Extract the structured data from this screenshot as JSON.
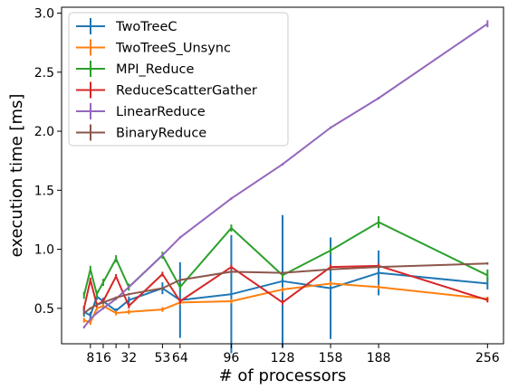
{
  "chart_data": {
    "type": "line",
    "title": "",
    "xlabel": "# of processors",
    "ylabel": "execution time [ms]",
    "x_ticks": [
      8,
      16,
      32,
      53,
      64,
      96,
      128,
      158,
      188,
      256
    ],
    "x_tick_labels": [
      "8",
      "16",
      "",
      "32",
      "53",
      "64",
      "96",
      "128",
      "158",
      "188",
      "256"
    ],
    "x_tick_positions": [
      8,
      16,
      24,
      32,
      53,
      64,
      96,
      128,
      158,
      188,
      256
    ],
    "y_ticks": [
      0.5,
      1.0,
      1.5,
      2.0,
      2.5,
      3.0
    ],
    "y_tick_labels": [
      "0.5",
      "1.0",
      "1.5",
      "2.0",
      "2.5",
      "3.0"
    ],
    "xlim": [
      -10,
      266
    ],
    "ylim": [
      0.2,
      3.05
    ],
    "grid": false,
    "legend_position": "top-left",
    "series": [
      {
        "name": "TwoTreeC",
        "color": "#1f77b4",
        "x": [
          4,
          8,
          12,
          16,
          24,
          32,
          53,
          64,
          96,
          128,
          158,
          188,
          256
        ],
        "y": [
          0.47,
          0.44,
          0.6,
          0.56,
          0.48,
          0.57,
          0.67,
          0.57,
          0.62,
          0.73,
          0.67,
          0.8,
          0.71
        ],
        "err": [
          0.04,
          0.03,
          0.03,
          0.03,
          0.02,
          0.03,
          0.05,
          0.32,
          0.5,
          0.56,
          0.43,
          0.19,
          0.05
        ]
      },
      {
        "name": "TwoTreeS_Unsync",
        "color": "#ff7f0e",
        "x": [
          4,
          8,
          12,
          16,
          24,
          32,
          53,
          64,
          96,
          128,
          158,
          188,
          256
        ],
        "y": [
          0.4,
          0.38,
          0.5,
          0.52,
          0.46,
          0.47,
          0.49,
          0.55,
          0.56,
          0.66,
          0.71,
          0.68,
          0.58
        ],
        "err": [
          0.02,
          0.02,
          0.02,
          0.02,
          0.02,
          0.02,
          0.02,
          0.02,
          0.02,
          0.02,
          0.02,
          0.02,
          0.02
        ]
      },
      {
        "name": "MPI_Reduce",
        "color": "#2ca02c",
        "x": [
          4,
          8,
          12,
          16,
          24,
          32,
          53,
          64,
          96,
          128,
          158,
          188,
          256
        ],
        "y": [
          0.61,
          0.83,
          0.62,
          0.72,
          0.92,
          0.68,
          0.95,
          0.68,
          1.18,
          0.78,
          0.99,
          1.23,
          0.78
        ],
        "err": [
          0.03,
          0.03,
          0.03,
          0.03,
          0.03,
          0.03,
          0.03,
          0.03,
          0.03,
          0.03,
          0.03,
          0.05,
          0.05
        ]
      },
      {
        "name": "ReduceScatterGather",
        "color": "#d62728",
        "x": [
          4,
          8,
          12,
          16,
          24,
          32,
          53,
          64,
          96,
          128,
          158,
          188,
          256
        ],
        "y": [
          0.5,
          0.74,
          0.53,
          0.56,
          0.77,
          0.52,
          0.79,
          0.56,
          0.85,
          0.55,
          0.85,
          0.86,
          0.57
        ],
        "err": [
          0.02,
          0.02,
          0.02,
          0.02,
          0.02,
          0.02,
          0.02,
          0.02,
          0.02,
          0.02,
          0.02,
          0.02,
          0.02
        ]
      },
      {
        "name": "LinearReduce",
        "color": "#9467bd",
        "x": [
          4,
          8,
          12,
          16,
          24,
          32,
          53,
          64,
          96,
          128,
          158,
          188,
          256
        ],
        "y": [
          0.34,
          0.41,
          0.46,
          0.5,
          0.58,
          0.68,
          0.95,
          1.1,
          1.43,
          1.72,
          2.03,
          2.28,
          2.91
        ],
        "err": [
          0.01,
          0.01,
          0.01,
          0.01,
          0.01,
          0.01,
          0.01,
          0.01,
          0.01,
          0.01,
          0.01,
          0.01,
          0.03
        ]
      },
      {
        "name": "BinaryReduce",
        "color": "#8c564b",
        "x": [
          4,
          8,
          12,
          16,
          24,
          32,
          53,
          64,
          96,
          128,
          158,
          188,
          256
        ],
        "y": [
          0.46,
          0.5,
          0.53,
          0.55,
          0.59,
          0.62,
          0.67,
          0.74,
          0.81,
          0.8,
          0.83,
          0.85,
          0.88
        ],
        "err": [
          0.01,
          0.01,
          0.01,
          0.01,
          0.01,
          0.01,
          0.01,
          0.01,
          0.01,
          0.01,
          0.01,
          0.01,
          0.01
        ]
      }
    ]
  }
}
